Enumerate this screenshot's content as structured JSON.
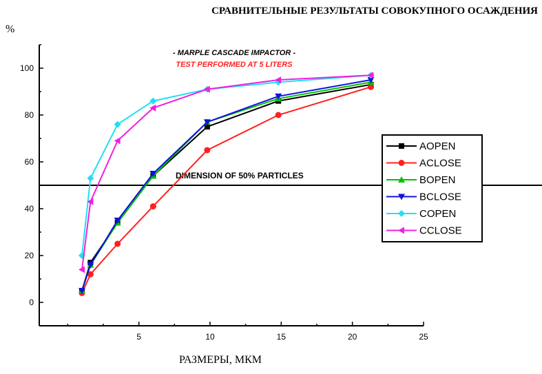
{
  "chart_data": {
    "type": "line",
    "title": "СРАВНИТЕЛЬНЫЕ РЕЗУЛЬТАТЫ СОВОКУПНОГО ОСАЖДЕНИЯ",
    "ylabel": "%",
    "xlabel": "РАЗМЕРЫ, МКМ",
    "xlim": [
      -2,
      25
    ],
    "ylim": [
      -10,
      110
    ],
    "xticks": [
      5,
      10,
      15,
      20,
      25
    ],
    "yticks": [
      0,
      20,
      40,
      60,
      80,
      100
    ],
    "annotations": [
      {
        "text": "- MARPLE CASCADE IMPACTOR -",
        "color": "#000000"
      },
      {
        "text": "TEST PERFORMED AT 5 LITERS",
        "color": "#ff2020"
      }
    ],
    "reference_line": {
      "y": 50,
      "label": "DIMENSION OF 50% PARTICLES"
    },
    "legend_position": "right",
    "series": [
      {
        "name": "AOPEN",
        "color": "#000000",
        "marker": "square",
        "x": [
          1.0,
          1.6,
          3.5,
          6.0,
          9.8,
          14.8,
          21.3
        ],
        "y": [
          5,
          17,
          34,
          54,
          75,
          86,
          93
        ]
      },
      {
        "name": "ACLOSE",
        "color": "#ff2020",
        "marker": "circle",
        "x": [
          1.0,
          1.6,
          3.5,
          6.0,
          9.8,
          14.8,
          21.3
        ],
        "y": [
          4,
          12,
          25,
          41,
          65,
          80,
          92
        ]
      },
      {
        "name": "BOPEN",
        "color": "#00c000",
        "marker": "triangle-up",
        "x": [
          1.0,
          1.6,
          3.5,
          6.0,
          9.8,
          14.8,
          21.3
        ],
        "y": [
          5,
          16,
          34,
          54,
          77,
          87,
          94
        ]
      },
      {
        "name": "BCLOSE",
        "color": "#1010e0",
        "marker": "triangle-down",
        "x": [
          1.0,
          1.6,
          3.5,
          6.0,
          9.8,
          14.8,
          21.3
        ],
        "y": [
          5,
          16,
          35,
          55,
          77,
          88,
          95
        ]
      },
      {
        "name": "COPEN",
        "color": "#20e0f0",
        "marker": "diamond",
        "x": [
          1.0,
          1.6,
          3.5,
          6.0,
          9.8,
          14.8,
          21.3
        ],
        "y": [
          20,
          53,
          76,
          86,
          91,
          94,
          97
        ]
      },
      {
        "name": "CCLOSE",
        "color": "#f020e0",
        "marker": "triangle-left",
        "x": [
          1.0,
          1.6,
          3.5,
          6.0,
          9.8,
          14.8,
          21.3
        ],
        "y": [
          14,
          43,
          69,
          83,
          91,
          95,
          97
        ]
      }
    ]
  }
}
